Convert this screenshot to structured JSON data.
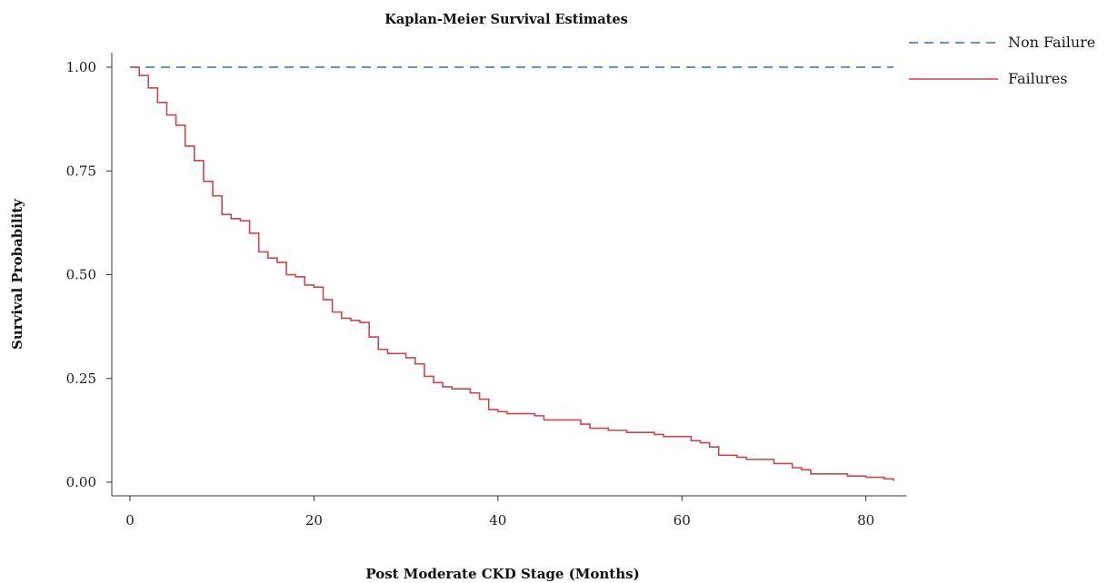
{
  "chart_data": {
    "type": "line",
    "subtype": "kaplan-meier step",
    "title": "Kaplan-Meier Survival Estimates",
    "xlabel": "Post Moderate CKD Stage (Months)",
    "ylabel": "Survival Probability",
    "xlim": [
      0,
      83
    ],
    "ylim": [
      0,
      1
    ],
    "x_ticks": [
      0,
      20,
      40,
      60,
      80
    ],
    "x_tick_labels": [
      "0",
      "20",
      "40",
      "60",
      "80"
    ],
    "y_ticks": [
      0,
      0.25,
      0.5,
      0.75,
      1
    ],
    "y_tick_labels": [
      "0.00",
      "0.25",
      "0.50",
      "0.75",
      "1.00"
    ],
    "grid": false,
    "legend_position": "top-right",
    "series": [
      {
        "name": "Non Failure",
        "color": "#3b6fa0",
        "style": "dashed",
        "x": [
          0,
          83
        ],
        "y": [
          1.0,
          1.0
        ]
      },
      {
        "name": "Failures",
        "color": "#c8474f",
        "style": "solid-step",
        "x": [
          0,
          1,
          2,
          3,
          4,
          5,
          6,
          7,
          8,
          9,
          10,
          11,
          12,
          13,
          14,
          15,
          16,
          17,
          18,
          19,
          20,
          21,
          22,
          23,
          24,
          25,
          26,
          27,
          28,
          29,
          30,
          31,
          32,
          33,
          34,
          35,
          36,
          37,
          38,
          39,
          40,
          41,
          42,
          44,
          45,
          47,
          49,
          50,
          52,
          54,
          57,
          58,
          61,
          62,
          63,
          64,
          66,
          67,
          68,
          70,
          72,
          73,
          74,
          78,
          80,
          82,
          83
        ],
        "y": [
          1.0,
          0.98,
          0.95,
          0.915,
          0.885,
          0.86,
          0.81,
          0.775,
          0.725,
          0.69,
          0.645,
          0.635,
          0.63,
          0.6,
          0.555,
          0.54,
          0.53,
          0.5,
          0.495,
          0.475,
          0.47,
          0.44,
          0.41,
          0.395,
          0.39,
          0.385,
          0.35,
          0.32,
          0.31,
          0.31,
          0.3,
          0.285,
          0.255,
          0.24,
          0.23,
          0.225,
          0.225,
          0.215,
          0.2,
          0.175,
          0.17,
          0.165,
          0.165,
          0.16,
          0.15,
          0.15,
          0.14,
          0.13,
          0.125,
          0.12,
          0.115,
          0.11,
          0.1,
          0.095,
          0.085,
          0.065,
          0.06,
          0.055,
          0.055,
          0.045,
          0.035,
          0.03,
          0.02,
          0.015,
          0.012,
          0.008,
          0.003
        ]
      }
    ]
  }
}
